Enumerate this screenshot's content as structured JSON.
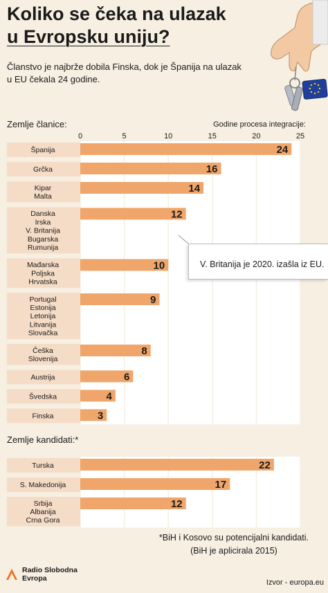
{
  "header": {
    "title_line1": "Koliko se čeka na ulazak",
    "title_line2": "u Evropsku uniju?",
    "subtitle_line1": "Članstvo je najbrže dobila Finska, dok je Španija na ulazak",
    "subtitle_line2": "u EU čekala 24 godine."
  },
  "sections": {
    "members": "Zemlje članice:",
    "candidates": "Zemlje kandidati:*"
  },
  "chart_data": {
    "type": "bar",
    "orientation": "horizontal",
    "xlabel": "Godine procesa integracije:",
    "xlim": [
      0,
      25
    ],
    "xticks": [
      0,
      5,
      10,
      15,
      20,
      25
    ],
    "bar_color": "#f0a66a",
    "groups": [
      {
        "name": "Zemlje članice:",
        "rows": [
          {
            "countries": [
              "Španija"
            ],
            "value": 24
          },
          {
            "countries": [
              "Grčka"
            ],
            "value": 16
          },
          {
            "countries": [
              "Kipar",
              "Malta"
            ],
            "value": 14
          },
          {
            "countries": [
              "Danska",
              "Irska",
              "V. Britanija",
              "Bugarska",
              "Rumunija"
            ],
            "value": 12
          },
          {
            "countries": [
              "Mađarska",
              "Poljska",
              "Hrvatska"
            ],
            "value": 10
          },
          {
            "countries": [
              "Portugal",
              "Estonija",
              "Letonija",
              "Litvanija",
              "Slovačka"
            ],
            "value": 9
          },
          {
            "countries": [
              "Češka",
              "Slovenija"
            ],
            "value": 8
          },
          {
            "countries": [
              "Austrija"
            ],
            "value": 6
          },
          {
            "countries": [
              "Švedska"
            ],
            "value": 4
          },
          {
            "countries": [
              "Finska"
            ],
            "value": 3
          }
        ]
      },
      {
        "name": "Zemlje kandidati:*",
        "rows": [
          {
            "countries": [
              "Turska"
            ],
            "value": 22
          },
          {
            "countries": [
              "S. Makedonija"
            ],
            "value": 17
          },
          {
            "countries": [
              "Srbija",
              "Albanija",
              "Crna Gora"
            ],
            "value": 12
          }
        ]
      }
    ],
    "annotation": "V. Britanija je 2020. izašla iz EU."
  },
  "footnote": {
    "line1": "*BiH i Kosovo su potencijalni kandidati.",
    "line2": "(BiH je aplicirala 2015)"
  },
  "source": "Izvor - europa.eu",
  "logo": {
    "line1": "Radio Slobodna",
    "line2": "Evropa",
    "color": "#f36f21"
  }
}
